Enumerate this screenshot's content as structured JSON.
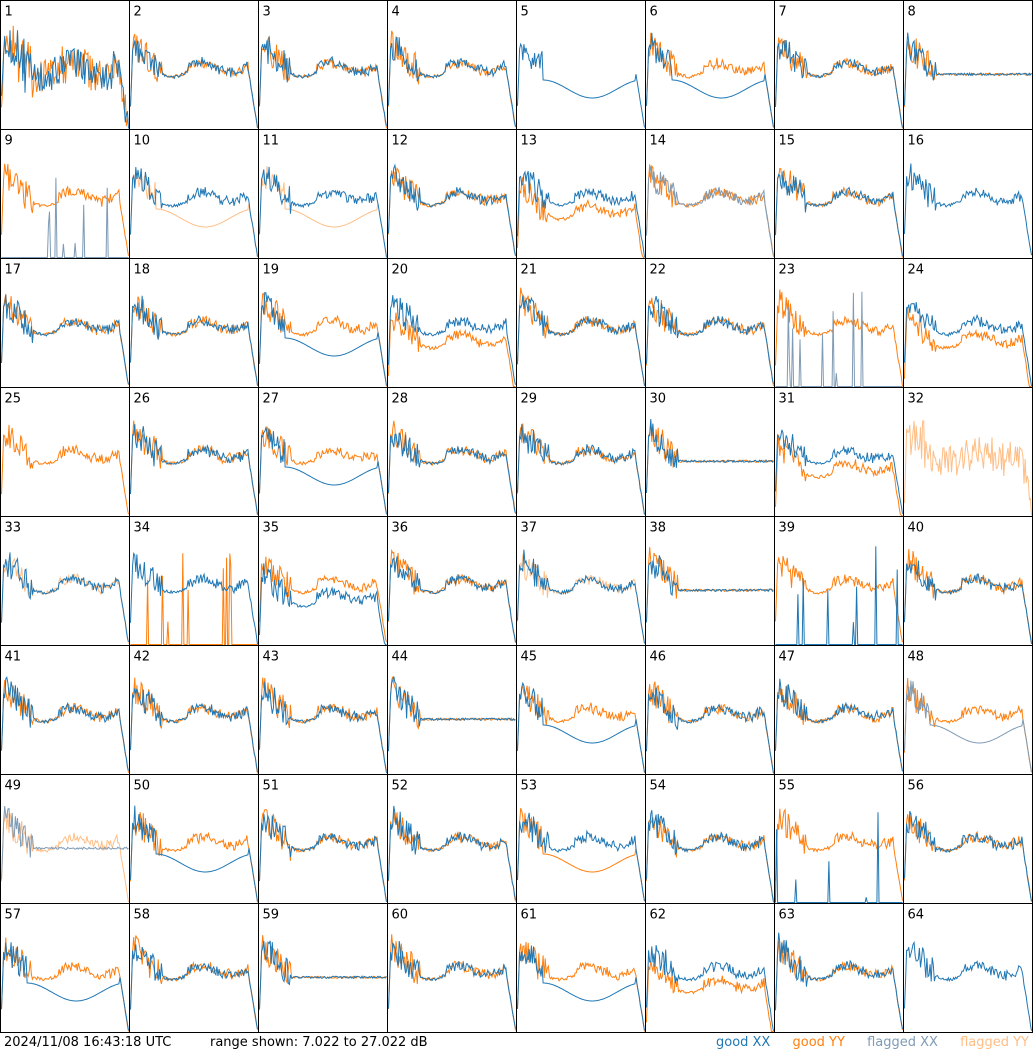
{
  "footer": {
    "timestamp": "2024/11/08 16:43:18 UTC",
    "range_text": "range shown: 7.022 to 27.022 dB",
    "legend": {
      "good_xx": "good XX",
      "good_yy": "good YY",
      "flagged_xx": "flagged XX",
      "flagged_yy": "flagged YY"
    }
  },
  "colors": {
    "good_xx": "#1f77b4",
    "good_yy": "#ff7f0e",
    "flagged_xx": "#7f9bb5",
    "flagged_yy": "#ffbe86"
  },
  "chart_data": {
    "type": "line",
    "layout": "8x8 small multiples",
    "ylim": [
      7.022,
      27.022
    ],
    "panels": [
      {
        "id": "1",
        "xx": "good",
        "yy": "good",
        "xx_shape": "erratic",
        "yy_shape": "erratic"
      },
      {
        "id": "2",
        "xx": "good",
        "yy": "good",
        "xx_shape": "normal",
        "yy_shape": "normal"
      },
      {
        "id": "3",
        "xx": "good",
        "yy": "good",
        "xx_shape": "normal",
        "yy_shape": "normal"
      },
      {
        "id": "4",
        "xx": "good",
        "yy": "good",
        "xx_shape": "normal",
        "yy_shape": "normal"
      },
      {
        "id": "5",
        "xx": "good",
        "yy": "good",
        "xx_shape": "low-dip",
        "yy_shape": "absent"
      },
      {
        "id": "6",
        "xx": "good",
        "yy": "good",
        "xx_shape": "low-dip",
        "yy_shape": "normal"
      },
      {
        "id": "7",
        "xx": "good",
        "yy": "good",
        "xx_shape": "normal",
        "yy_shape": "normal"
      },
      {
        "id": "8",
        "xx": "good",
        "yy": "good",
        "xx_shape": "flat",
        "yy_shape": "flat"
      },
      {
        "id": "9",
        "xx": "flagged",
        "yy": "good",
        "xx_shape": "spiky-low",
        "yy_shape": "normal"
      },
      {
        "id": "10",
        "xx": "good",
        "yy": "flagged",
        "xx_shape": "normal",
        "yy_shape": "low-dip"
      },
      {
        "id": "11",
        "xx": "good",
        "yy": "flagged",
        "xx_shape": "normal",
        "yy_shape": "low-dip"
      },
      {
        "id": "12",
        "xx": "good",
        "yy": "good",
        "xx_shape": "normal",
        "yy_shape": "normal"
      },
      {
        "id": "13",
        "xx": "good",
        "yy": "good",
        "xx_shape": "normal",
        "yy_shape": "lower"
      },
      {
        "id": "14",
        "xx": "flagged",
        "yy": "good",
        "xx_shape": "normal",
        "yy_shape": "normal"
      },
      {
        "id": "15",
        "xx": "good",
        "yy": "good",
        "xx_shape": "normal",
        "yy_shape": "normal"
      },
      {
        "id": "16",
        "xx": "good",
        "yy": "flagged",
        "xx_shape": "normal",
        "yy_shape": "absent"
      },
      {
        "id": "17",
        "xx": "good",
        "yy": "good",
        "xx_shape": "normal",
        "yy_shape": "normal"
      },
      {
        "id": "18",
        "xx": "good",
        "yy": "good",
        "xx_shape": "normal",
        "yy_shape": "normal"
      },
      {
        "id": "19",
        "xx": "good",
        "yy": "good",
        "xx_shape": "low-dip",
        "yy_shape": "normal"
      },
      {
        "id": "20",
        "xx": "good",
        "yy": "good",
        "xx_shape": "normal",
        "yy_shape": "lower"
      },
      {
        "id": "21",
        "xx": "good",
        "yy": "good",
        "xx_shape": "normal",
        "yy_shape": "normal"
      },
      {
        "id": "22",
        "xx": "good",
        "yy": "good",
        "xx_shape": "normal",
        "yy_shape": "normal"
      },
      {
        "id": "23",
        "xx": "flagged",
        "yy": "good",
        "xx_shape": "spiky-low",
        "yy_shape": "normal"
      },
      {
        "id": "24",
        "xx": "good",
        "yy": "good",
        "xx_shape": "normal",
        "yy_shape": "lower"
      },
      {
        "id": "25",
        "xx": "good",
        "yy": "good",
        "xx_shape": "absent",
        "yy_shape": "normal"
      },
      {
        "id": "26",
        "xx": "good",
        "yy": "good",
        "xx_shape": "normal",
        "yy_shape": "normal"
      },
      {
        "id": "27",
        "xx": "good",
        "yy": "good",
        "xx_shape": "low-dip",
        "yy_shape": "normal"
      },
      {
        "id": "28",
        "xx": "good",
        "yy": "good",
        "xx_shape": "normal",
        "yy_shape": "normal"
      },
      {
        "id": "29",
        "xx": "good",
        "yy": "good",
        "xx_shape": "normal",
        "yy_shape": "normal"
      },
      {
        "id": "30",
        "xx": "good",
        "yy": "good",
        "xx_shape": "flat",
        "yy_shape": "flat"
      },
      {
        "id": "31",
        "xx": "good",
        "yy": "good",
        "xx_shape": "normal",
        "yy_shape": "lower"
      },
      {
        "id": "32",
        "xx": "flagged",
        "yy": "flagged",
        "xx_shape": "absent",
        "yy_shape": "erratic"
      },
      {
        "id": "33",
        "xx": "good",
        "yy": "flagged",
        "xx_shape": "normal",
        "yy_shape": "normal"
      },
      {
        "id": "34",
        "xx": "good",
        "yy": "good",
        "xx_shape": "normal",
        "yy_shape": "spiky-low"
      },
      {
        "id": "35",
        "xx": "good",
        "yy": "good",
        "xx_shape": "lower",
        "yy_shape": "normal"
      },
      {
        "id": "36",
        "xx": "good",
        "yy": "good",
        "xx_shape": "normal",
        "yy_shape": "normal"
      },
      {
        "id": "37",
        "xx": "good",
        "yy": "flagged",
        "xx_shape": "normal",
        "yy_shape": "normal"
      },
      {
        "id": "38",
        "xx": "good",
        "yy": "good",
        "xx_shape": "flat",
        "yy_shape": "flat"
      },
      {
        "id": "39",
        "xx": "good",
        "yy": "good",
        "xx_shape": "spiky-low",
        "yy_shape": "normal"
      },
      {
        "id": "40",
        "xx": "good",
        "yy": "good",
        "xx_shape": "normal",
        "yy_shape": "normal"
      },
      {
        "id": "41",
        "xx": "good",
        "yy": "good",
        "xx_shape": "normal",
        "yy_shape": "normal"
      },
      {
        "id": "42",
        "xx": "good",
        "yy": "good",
        "xx_shape": "normal",
        "yy_shape": "normal"
      },
      {
        "id": "43",
        "xx": "good",
        "yy": "good",
        "xx_shape": "normal",
        "yy_shape": "normal"
      },
      {
        "id": "44",
        "xx": "good",
        "yy": "good",
        "xx_shape": "flat",
        "yy_shape": "flat"
      },
      {
        "id": "45",
        "xx": "good",
        "yy": "good",
        "xx_shape": "low-dip",
        "yy_shape": "normal"
      },
      {
        "id": "46",
        "xx": "good",
        "yy": "good",
        "xx_shape": "normal",
        "yy_shape": "normal"
      },
      {
        "id": "47",
        "xx": "good",
        "yy": "good",
        "xx_shape": "normal",
        "yy_shape": "normal"
      },
      {
        "id": "48",
        "xx": "flagged",
        "yy": "good",
        "xx_shape": "low-dip",
        "yy_shape": "normal"
      },
      {
        "id": "49",
        "xx": "flagged",
        "yy": "flagged",
        "xx_shape": "flat",
        "yy_shape": "normal"
      },
      {
        "id": "50",
        "xx": "good",
        "yy": "good",
        "xx_shape": "low-dip",
        "yy_shape": "normal"
      },
      {
        "id": "51",
        "xx": "good",
        "yy": "good",
        "xx_shape": "normal",
        "yy_shape": "normal"
      },
      {
        "id": "52",
        "xx": "good",
        "yy": "good",
        "xx_shape": "normal",
        "yy_shape": "normal"
      },
      {
        "id": "53",
        "xx": "good",
        "yy": "good",
        "xx_shape": "normal",
        "yy_shape": "low-dip"
      },
      {
        "id": "54",
        "xx": "good",
        "yy": "good",
        "xx_shape": "normal",
        "yy_shape": "normal"
      },
      {
        "id": "55",
        "xx": "good",
        "yy": "good",
        "xx_shape": "spiky-low",
        "yy_shape": "normal"
      },
      {
        "id": "56",
        "xx": "good",
        "yy": "good",
        "xx_shape": "normal",
        "yy_shape": "normal"
      },
      {
        "id": "57",
        "xx": "good",
        "yy": "good",
        "xx_shape": "low-dip",
        "yy_shape": "normal"
      },
      {
        "id": "58",
        "xx": "good",
        "yy": "good",
        "xx_shape": "normal",
        "yy_shape": "normal"
      },
      {
        "id": "59",
        "xx": "good",
        "yy": "good",
        "xx_shape": "flat",
        "yy_shape": "flat"
      },
      {
        "id": "60",
        "xx": "good",
        "yy": "good",
        "xx_shape": "normal",
        "yy_shape": "normal"
      },
      {
        "id": "61",
        "xx": "good",
        "yy": "good",
        "xx_shape": "low-dip",
        "yy_shape": "normal"
      },
      {
        "id": "62",
        "xx": "good",
        "yy": "good",
        "xx_shape": "normal",
        "yy_shape": "lower"
      },
      {
        "id": "63",
        "xx": "good",
        "yy": "good",
        "xx_shape": "normal",
        "yy_shape": "normal"
      },
      {
        "id": "64",
        "xx": "good",
        "yy": "flagged",
        "xx_shape": "normal",
        "yy_shape": "absent"
      }
    ]
  }
}
